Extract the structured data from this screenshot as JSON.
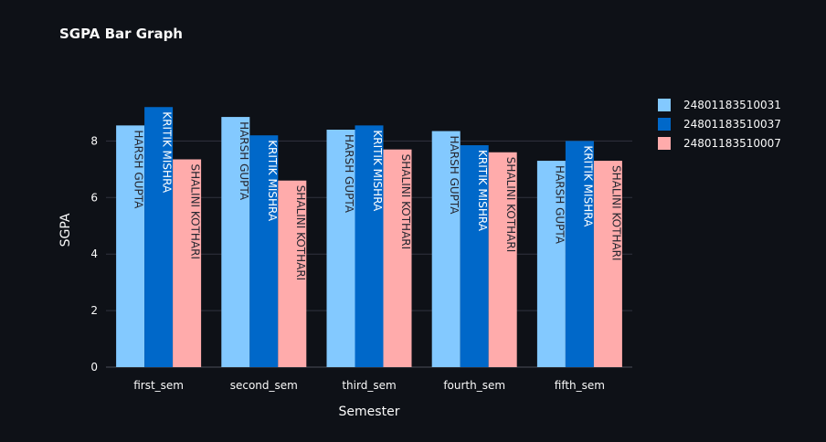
{
  "chart_data": {
    "type": "bar",
    "title": "SGPA Bar Graph",
    "xlabel": "Semester",
    "ylabel": "SGPA",
    "categories": [
      "first_sem",
      "second_sem",
      "third_sem",
      "fourth_sem",
      "fifth_sem"
    ],
    "ylim": [
      0,
      10.08
    ],
    "yticks": [
      0,
      2,
      4,
      6,
      8
    ],
    "grid": true,
    "legend_position": "right",
    "series": [
      {
        "name": "24801183510031",
        "label": "HARSH GUPTA",
        "color": "#83c9ff",
        "text_color": "#262730",
        "values": [
          8.55,
          8.85,
          8.4,
          8.35,
          7.3
        ]
      },
      {
        "name": "24801183510037",
        "label": "KRITIK MISHRA",
        "color": "#0068c9",
        "text_color": "#ffffff",
        "values": [
          9.2,
          8.2,
          8.55,
          7.85,
          8.0
        ]
      },
      {
        "name": "24801183510007",
        "label": "SHALINI KOTHARI",
        "color": "#ffabab",
        "text_color": "#262730",
        "values": [
          7.35,
          6.6,
          7.7,
          7.6,
          7.3
        ]
      }
    ]
  }
}
